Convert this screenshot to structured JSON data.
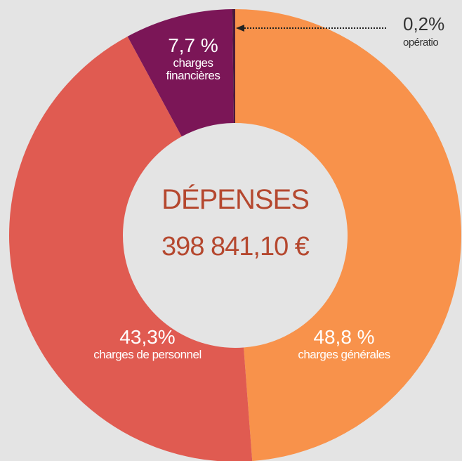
{
  "chart_data": {
    "type": "donut",
    "center_title": "DÉPENSES",
    "center_value": "398 841,10 €",
    "series": [
      {
        "name": "charges générales",
        "color": "#f8924b",
        "values": [
          48.8
        ],
        "value_labels": [
          "48,8 %"
        ]
      },
      {
        "name": "charges de personnel",
        "color": "#e05b51",
        "values": [
          43.3
        ],
        "value_labels": [
          "43,3%"
        ]
      },
      {
        "name": "charges financières",
        "color": "#7b1657",
        "values": [
          7.7
        ],
        "value_labels": [
          "7,7 %"
        ]
      },
      {
        "name": "opératio",
        "color": "#4a1a3a",
        "values": [
          0.2
        ],
        "value_labels": [
          "0,2%"
        ]
      }
    ]
  }
}
